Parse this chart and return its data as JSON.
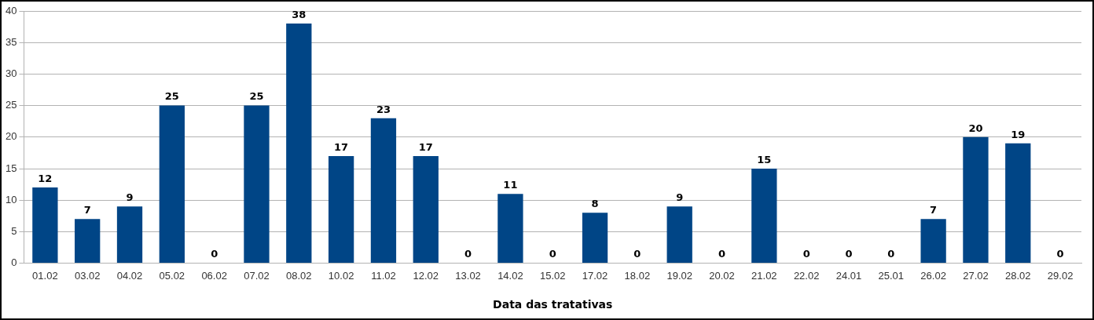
{
  "chart_data": {
    "type": "bar",
    "xlabel": "Data das tratativas",
    "categories": [
      "01.02",
      "03.02",
      "04.02",
      "05.02",
      "06.02",
      "07.02",
      "08.02",
      "10.02",
      "11.02",
      "12.02",
      "13.02",
      "14.02",
      "15.02",
      "17.02",
      "18.02",
      "19.02",
      "20.02",
      "21.02",
      "22.02",
      "24.01",
      "25.01",
      "26.02",
      "27.02",
      "28.02",
      "29.02"
    ],
    "values": [
      12,
      7,
      9,
      25,
      0,
      25,
      38,
      17,
      23,
      17,
      0,
      11,
      0,
      8,
      0,
      9,
      0,
      15,
      0,
      0,
      0,
      7,
      20,
      19,
      0
    ],
    "color": "#004586",
    "ylim": [
      0,
      40
    ],
    "yticks": [
      0,
      5,
      10,
      15,
      20,
      25,
      30,
      35,
      40
    ],
    "grid": "y",
    "data_labels": true,
    "legend": false
  }
}
